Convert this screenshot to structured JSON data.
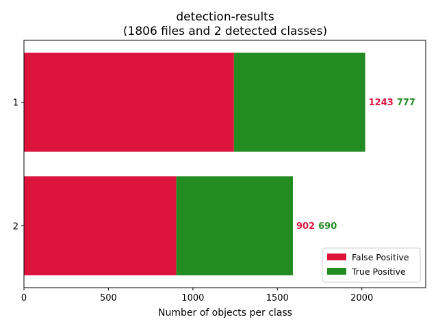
{
  "chart_data": {
    "type": "bar",
    "orientation": "horizontal",
    "stacked": true,
    "title": "detection-results",
    "subtitle": "(1806 files and 2 detected classes)",
    "xlabel": "Number of objects per class",
    "ylabel": "",
    "xlim": [
      0,
      2378
    ],
    "xticks": [
      0,
      500,
      1000,
      1500,
      2000
    ],
    "categories": [
      "1",
      "2"
    ],
    "series": [
      {
        "name": "False Positive",
        "color": "#dc143c",
        "values": [
          1243,
          902
        ]
      },
      {
        "name": "True Positive",
        "color": "#228b22",
        "values": [
          777,
          690
        ]
      }
    ],
    "grid": false,
    "legend_position": "lower-right"
  }
}
